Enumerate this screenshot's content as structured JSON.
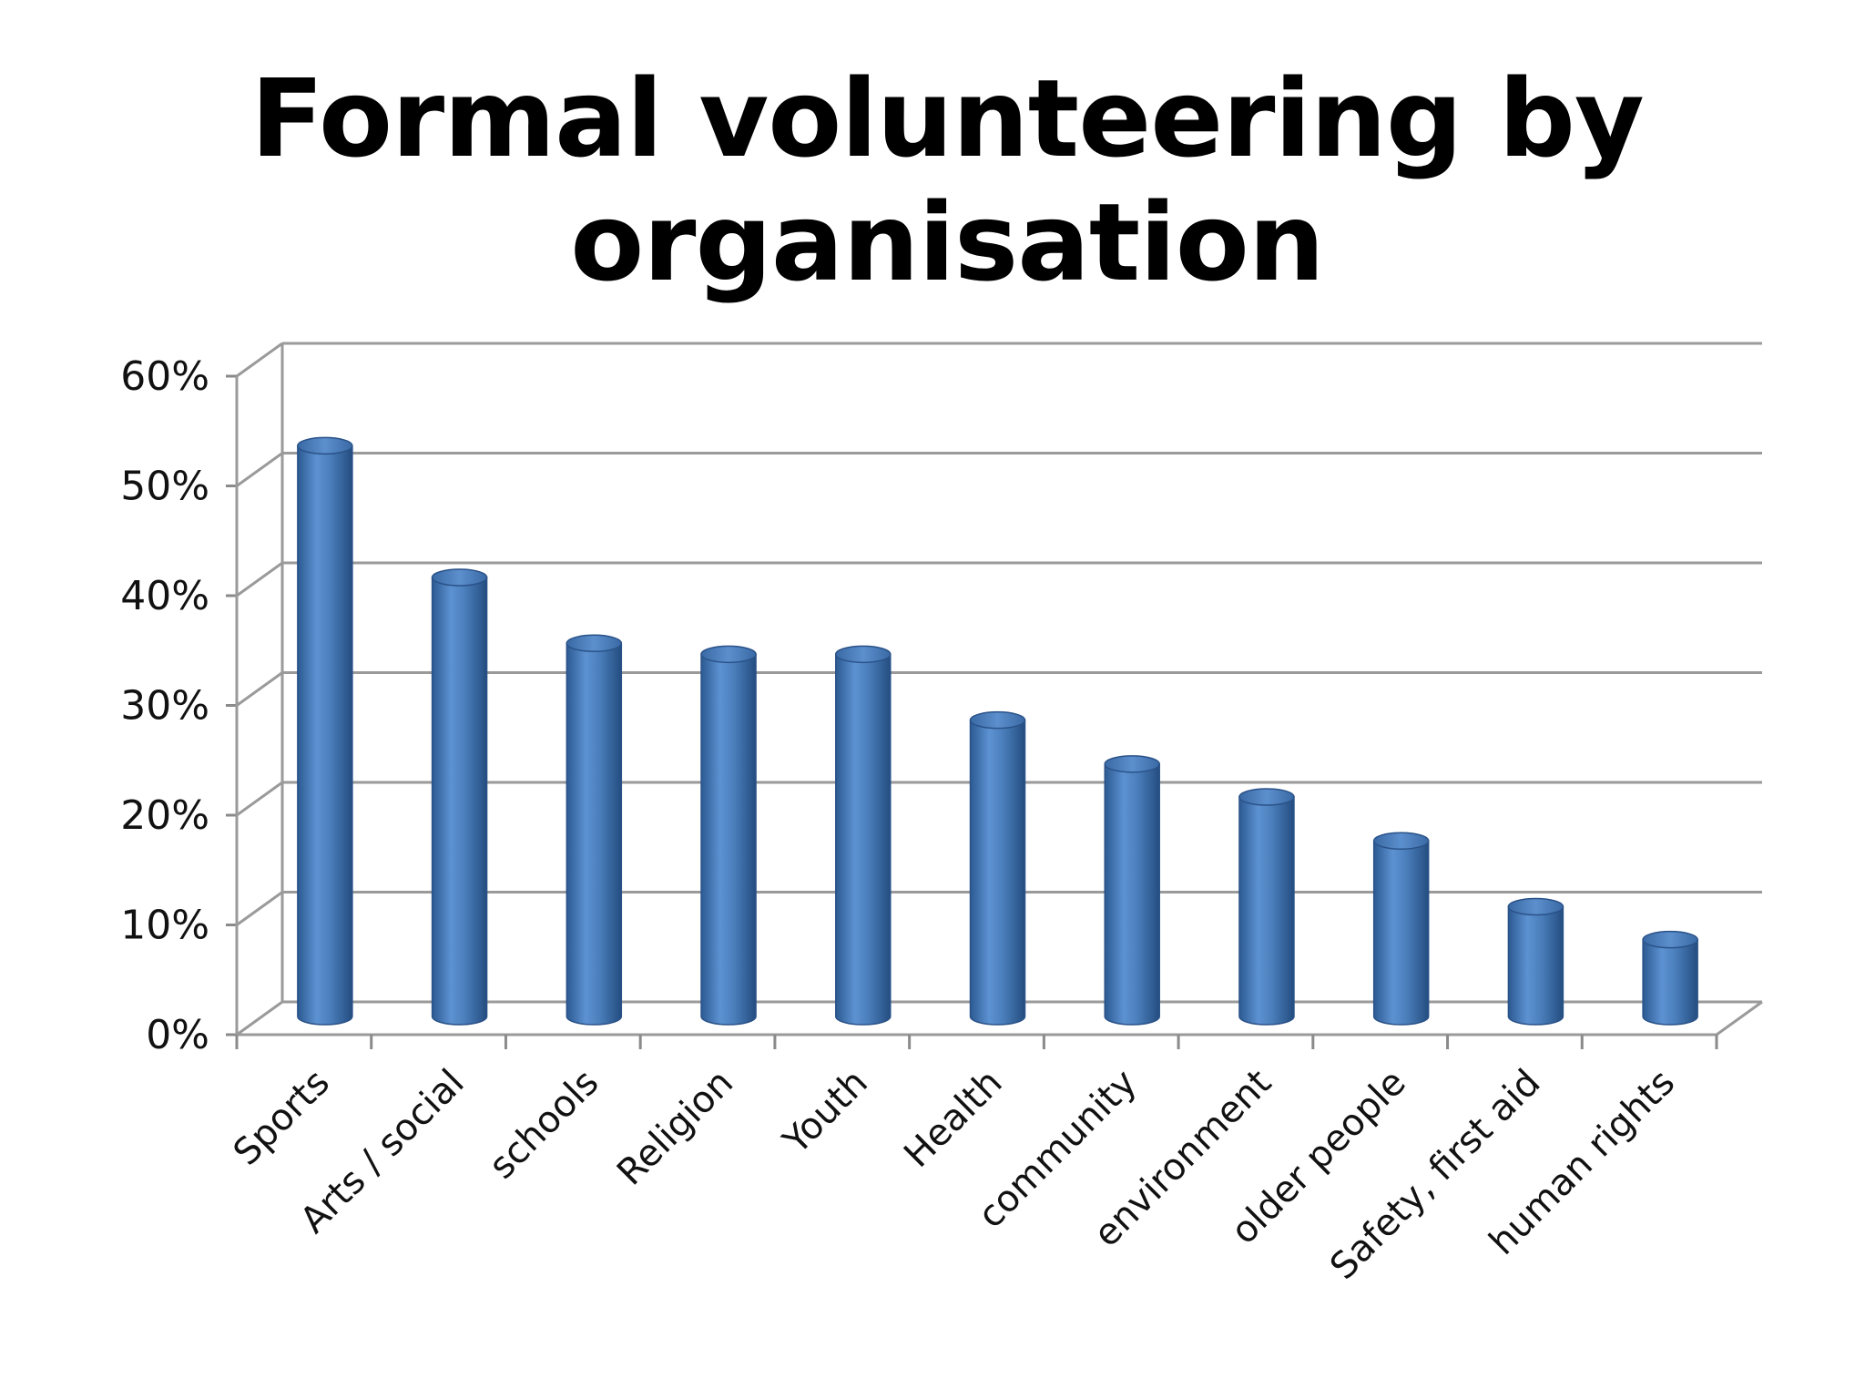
{
  "chart_data": {
    "type": "bar",
    "title": "Formal volunteering by organisation",
    "xlabel": "",
    "ylabel": "",
    "categories": [
      "Sports",
      "Arts / social",
      "schools",
      "Religion",
      "Youth",
      "Health",
      "community",
      "environment",
      "older people",
      "Safety, first aid",
      "human rights"
    ],
    "values": [
      0.52,
      0.4,
      0.34,
      0.33,
      0.33,
      0.27,
      0.23,
      0.2,
      0.16,
      0.1,
      0.07
    ],
    "ylim": [
      0,
      0.6
    ],
    "yticks": [
      0,
      0.1,
      0.2,
      0.3,
      0.4,
      0.5,
      0.6
    ],
    "ytick_labels": [
      "0%",
      "10%",
      "20%",
      "30%",
      "40%",
      "50%",
      "60%"
    ],
    "grid": true,
    "legend": "none",
    "style": "3d-cylinder",
    "bar_color": "#4a7ebb"
  }
}
